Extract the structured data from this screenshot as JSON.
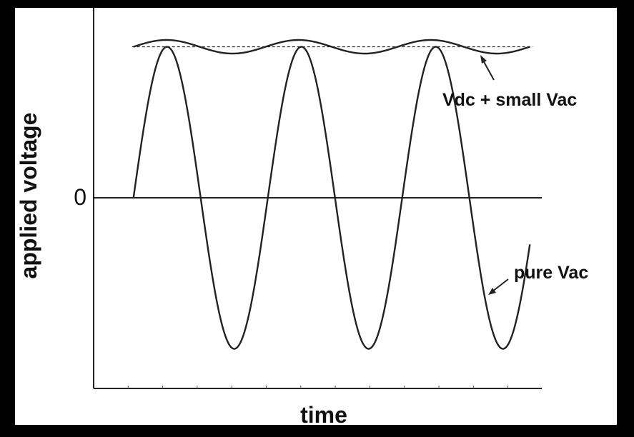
{
  "chart_data": {
    "type": "line",
    "title": "",
    "xlabel": "time",
    "ylabel": "applied voltage",
    "ylim": [
      -1.0,
      1.25
    ],
    "xlim": [
      0,
      2.25
    ],
    "y_tick_labels": [
      {
        "value": 0,
        "label": "0"
      }
    ],
    "grid": false,
    "legend": "none",
    "series": [
      {
        "name": "pure Vac",
        "function": "sine",
        "amplitude": 1.0,
        "offset": 0.0,
        "periods": 2.95,
        "x_start": 0.2,
        "x_end": 2.19,
        "stroke": "#222222"
      },
      {
        "name": "Vdc + small Vac",
        "function": "sine",
        "amplitude": 0.045,
        "offset": 1.0,
        "periods": 3.0,
        "x_start": 0.2,
        "x_end": 2.19,
        "stroke": "#222222"
      }
    ],
    "reference_lines": [
      {
        "name": "Vdc level",
        "value": 1.0,
        "style": "dashed"
      }
    ],
    "annotations": [
      {
        "text": "Vdc + small Vac",
        "target": "Vdc + small Vac"
      },
      {
        "text": "pure Vac",
        "target": "pure Vac"
      }
    ],
    "colors": {
      "background": "#ffffff",
      "frame": "#000000",
      "ink": "#222222"
    }
  }
}
